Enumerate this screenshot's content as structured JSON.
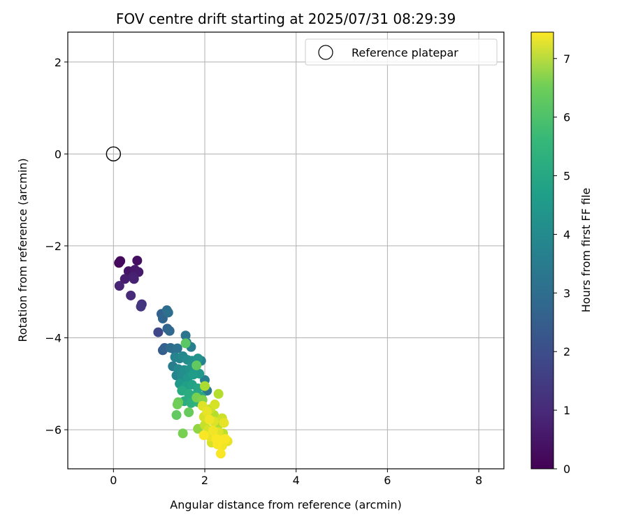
{
  "chart_data": {
    "type": "scatter",
    "title": "FOV centre drift starting at 2025/07/31 08:29:39",
    "xlabel": "Angular distance from reference (arcmin)",
    "ylabel": "Rotation from reference (arcmin)",
    "xlim": [
      -1.0,
      8.55
    ],
    "ylim": [
      -6.85,
      2.65
    ],
    "xticks": [
      0,
      2,
      4,
      6,
      8
    ],
    "yticks": [
      -6,
      -4,
      -2,
      0,
      2
    ],
    "grid": true,
    "legend": {
      "position": "top-right",
      "entries": [
        "Reference platepar"
      ]
    },
    "reference_point": {
      "x": 0,
      "y": 0,
      "label": "Reference platepar",
      "marker": "open-circle"
    },
    "colorbar": {
      "label": "Hours from first FF file",
      "range": [
        0,
        7.45
      ],
      "ticks": [
        0,
        1,
        2,
        3,
        4,
        5,
        6,
        7
      ],
      "colormap": "viridis"
    },
    "series": [
      {
        "values_note": "",
        "points": [
          {
            "x": 0.12,
            "y": -2.37,
            "c": 0.15
          },
          {
            "x": 0.15,
            "y": -2.33,
            "c": 0.2
          },
          {
            "x": 0.52,
            "y": -2.32,
            "c": 0.3
          },
          {
            "x": 0.33,
            "y": -2.55,
            "c": 0.4
          },
          {
            "x": 0.47,
            "y": -2.52,
            "c": 0.5
          },
          {
            "x": 0.55,
            "y": -2.57,
            "c": 0.55
          },
          {
            "x": 0.25,
            "y": -2.72,
            "c": 0.6
          },
          {
            "x": 0.43,
            "y": -2.67,
            "c": 0.65
          },
          {
            "x": 0.45,
            "y": -2.72,
            "c": 0.7
          },
          {
            "x": 0.13,
            "y": -2.87,
            "c": 0.75
          },
          {
            "x": 0.38,
            "y": -3.08,
            "c": 0.9
          },
          {
            "x": 0.62,
            "y": -3.27,
            "c": 1.1
          },
          {
            "x": 0.6,
            "y": -3.32,
            "c": 1.2
          },
          {
            "x": 0.98,
            "y": -3.88,
            "c": 1.6
          },
          {
            "x": 1.05,
            "y": -3.48,
            "c": 2.3
          },
          {
            "x": 1.08,
            "y": -3.58,
            "c": 2.4
          },
          {
            "x": 1.17,
            "y": -3.4,
            "c": 2.6
          },
          {
            "x": 1.2,
            "y": -3.45,
            "c": 2.7
          },
          {
            "x": 1.18,
            "y": -3.8,
            "c": 2.4
          },
          {
            "x": 1.23,
            "y": -3.85,
            "c": 2.5
          },
          {
            "x": 1.08,
            "y": -4.27,
            "c": 2.2
          },
          {
            "x": 1.12,
            "y": -4.22,
            "c": 2.3
          },
          {
            "x": 1.25,
            "y": -4.22,
            "c": 2.6
          },
          {
            "x": 1.33,
            "y": -4.25,
            "c": 2.7
          },
          {
            "x": 1.4,
            "y": -4.23,
            "c": 2.8
          },
          {
            "x": 1.58,
            "y": -3.95,
            "c": 2.9
          },
          {
            "x": 1.6,
            "y": -4.1,
            "c": 3.1
          },
          {
            "x": 1.7,
            "y": -4.2,
            "c": 3.2
          },
          {
            "x": 1.35,
            "y": -4.42,
            "c": 3.3
          },
          {
            "x": 1.45,
            "y": -4.45,
            "c": 3.4
          },
          {
            "x": 1.52,
            "y": -4.4,
            "c": 3.5
          },
          {
            "x": 1.62,
            "y": -4.48,
            "c": 3.6
          },
          {
            "x": 1.72,
            "y": -4.5,
            "c": 3.7
          },
          {
            "x": 1.85,
            "y": -4.45,
            "c": 3.8
          },
          {
            "x": 1.92,
            "y": -4.5,
            "c": 3.3
          },
          {
            "x": 1.3,
            "y": -4.62,
            "c": 3.1
          },
          {
            "x": 1.42,
            "y": -4.68,
            "c": 3.5
          },
          {
            "x": 1.55,
            "y": -4.7,
            "c": 3.7
          },
          {
            "x": 1.68,
            "y": -4.68,
            "c": 3.8
          },
          {
            "x": 1.78,
            "y": -4.72,
            "c": 3.9
          },
          {
            "x": 1.88,
            "y": -4.78,
            "c": 4.0
          },
          {
            "x": 1.38,
            "y": -4.82,
            "c": 3.4
          },
          {
            "x": 1.5,
            "y": -4.85,
            "c": 3.6
          },
          {
            "x": 1.62,
            "y": -4.88,
            "c": 3.9
          },
          {
            "x": 1.75,
            "y": -4.8,
            "c": 4.1
          },
          {
            "x": 2.0,
            "y": -4.92,
            "c": 3.2
          },
          {
            "x": 1.45,
            "y": -5.0,
            "c": 4.0
          },
          {
            "x": 1.6,
            "y": -5.05,
            "c": 4.2
          },
          {
            "x": 1.72,
            "y": -5.02,
            "c": 4.3
          },
          {
            "x": 1.85,
            "y": -5.1,
            "c": 4.4
          },
          {
            "x": 2.05,
            "y": -5.15,
            "c": 3.0
          },
          {
            "x": 1.5,
            "y": -5.15,
            "c": 4.5
          },
          {
            "x": 1.65,
            "y": -5.22,
            "c": 4.6
          },
          {
            "x": 1.78,
            "y": -5.25,
            "c": 4.5
          },
          {
            "x": 1.92,
            "y": -5.28,
            "c": 4.4
          },
          {
            "x": 1.55,
            "y": -5.38,
            "c": 4.6
          },
          {
            "x": 1.7,
            "y": -5.42,
            "c": 4.7
          },
          {
            "x": 1.85,
            "y": -5.4,
            "c": 4.8
          },
          {
            "x": 1.82,
            "y": -4.6,
            "c": 5.6
          },
          {
            "x": 1.58,
            "y": -4.12,
            "c": 5.5
          },
          {
            "x": 1.42,
            "y": -5.4,
            "c": 5.7
          },
          {
            "x": 1.4,
            "y": -5.45,
            "c": 5.8
          },
          {
            "x": 1.38,
            "y": -5.68,
            "c": 5.6
          },
          {
            "x": 1.65,
            "y": -5.62,
            "c": 5.7
          },
          {
            "x": 1.82,
            "y": -5.3,
            "c": 5.9
          },
          {
            "x": 1.95,
            "y": -5.35,
            "c": 6.0
          },
          {
            "x": 2.0,
            "y": -5.05,
            "c": 6.5
          },
          {
            "x": 1.52,
            "y": -6.08,
            "c": 5.9
          },
          {
            "x": 1.85,
            "y": -5.98,
            "c": 6.2
          },
          {
            "x": 2.3,
            "y": -5.22,
            "c": 6.6
          },
          {
            "x": 2.12,
            "y": -5.55,
            "c": 6.8
          },
          {
            "x": 2.22,
            "y": -5.45,
            "c": 7.0
          },
          {
            "x": 1.95,
            "y": -5.48,
            "c": 7.1
          },
          {
            "x": 2.05,
            "y": -5.6,
            "c": 7.2
          },
          {
            "x": 1.98,
            "y": -5.72,
            "c": 7.0
          },
          {
            "x": 2.1,
            "y": -5.78,
            "c": 7.3
          },
          {
            "x": 2.2,
            "y": -5.82,
            "c": 7.1
          },
          {
            "x": 2.38,
            "y": -5.75,
            "c": 6.9
          },
          {
            "x": 2.42,
            "y": -5.85,
            "c": 7.2
          },
          {
            "x": 2.0,
            "y": -5.9,
            "c": 6.8
          },
          {
            "x": 2.08,
            "y": -6.0,
            "c": 7.0
          },
          {
            "x": 2.18,
            "y": -6.02,
            "c": 7.3
          },
          {
            "x": 2.3,
            "y": -6.05,
            "c": 7.1
          },
          {
            "x": 2.4,
            "y": -6.08,
            "c": 6.7
          },
          {
            "x": 1.98,
            "y": -6.12,
            "c": 7.4
          },
          {
            "x": 2.12,
            "y": -6.15,
            "c": 7.2
          },
          {
            "x": 2.25,
            "y": -6.2,
            "c": 7.4
          },
          {
            "x": 2.35,
            "y": -6.22,
            "c": 7.3
          },
          {
            "x": 2.45,
            "y": -6.2,
            "c": 7.4
          },
          {
            "x": 2.5,
            "y": -6.25,
            "c": 7.2
          },
          {
            "x": 2.15,
            "y": -6.28,
            "c": 7.0
          },
          {
            "x": 2.28,
            "y": -6.32,
            "c": 7.4
          },
          {
            "x": 2.38,
            "y": -6.35,
            "c": 7.3
          },
          {
            "x": 2.35,
            "y": -6.52,
            "c": 7.4
          },
          {
            "x": 2.2,
            "y": -5.68,
            "c": 6.6
          },
          {
            "x": 2.28,
            "y": -5.92,
            "c": 6.5
          }
        ]
      }
    ]
  }
}
